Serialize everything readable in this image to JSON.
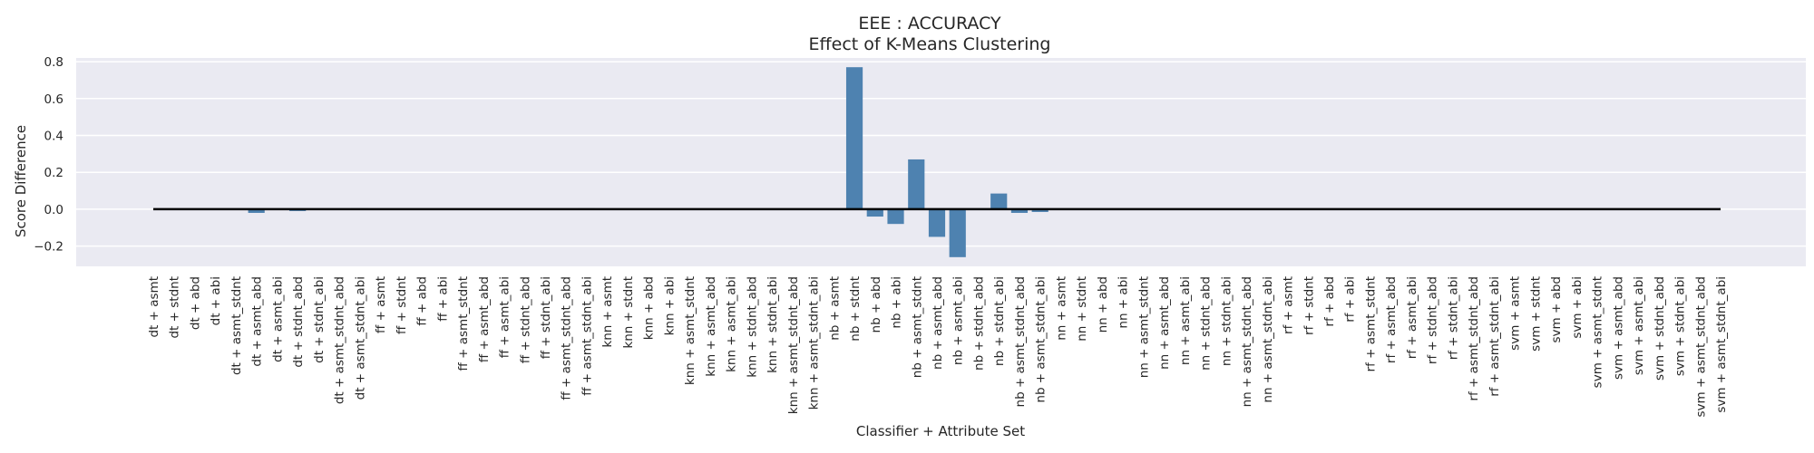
{
  "chart_data": {
    "type": "bar",
    "title": "EEE : ACCURACY",
    "subtitle": "Effect of K-Means Clustering",
    "xlabel": "Classifier + Attribute Set",
    "ylabel": "Score Difference",
    "ylim": [
      -0.31,
      0.82
    ],
    "yticks": [
      -0.2,
      0.0,
      0.2,
      0.4,
      0.6,
      0.8
    ],
    "ytick_labels": [
      "−0.2",
      "0.0",
      "0.2",
      "0.4",
      "0.6",
      "0.8"
    ],
    "grid": true,
    "bar_color": "#4e82b0",
    "background_color": "#eaeaf2",
    "zero_line_color": "#000000",
    "categories": [
      "dt + asmt",
      "dt + stdnt",
      "dt + abd",
      "dt + abi",
      "dt + asmt_stdnt",
      "dt + asmt_abd",
      "dt + asmt_abi",
      "dt + stdnt_abd",
      "dt + stdnt_abi",
      "dt + asmt_stdnt_abd",
      "dt + asmt_stdnt_abi",
      "ff + asmt",
      "ff + stdnt",
      "ff + abd",
      "ff + abi",
      "ff + asmt_stdnt",
      "ff + asmt_abd",
      "ff + asmt_abi",
      "ff + stdnt_abd",
      "ff + stdnt_abi",
      "ff + asmt_stdnt_abd",
      "ff + asmt_stdnt_abi",
      "knn + asmt",
      "knn + stdnt",
      "knn + abd",
      "knn + abi",
      "knn + asmt_stdnt",
      "knn + asmt_abd",
      "knn + asmt_abi",
      "knn + stdnt_abd",
      "knn + stdnt_abi",
      "knn + asmt_stdnt_abd",
      "knn + asmt_stdnt_abi",
      "nb + asmt",
      "nb + stdnt",
      "nb + abd",
      "nb + abi",
      "nb + asmt_stdnt",
      "nb + asmt_abd",
      "nb + asmt_abi",
      "nb + stdnt_abd",
      "nb + stdnt_abi",
      "nb + asmt_stdnt_abd",
      "nb + asmt_stdnt_abi",
      "nn + asmt",
      "nn + stdnt",
      "nn + abd",
      "nn + abi",
      "nn + asmt_stdnt",
      "nn + asmt_abd",
      "nn + asmt_abi",
      "nn + stdnt_abd",
      "nn + stdnt_abi",
      "nn + asmt_stdnt_abd",
      "nn + asmt_stdnt_abi",
      "rf + asmt",
      "rf + stdnt",
      "rf + abd",
      "rf + abi",
      "rf + asmt_stdnt",
      "rf + asmt_abd",
      "rf + asmt_abi",
      "rf + stdnt_abd",
      "rf + stdnt_abi",
      "rf + asmt_stdnt_abd",
      "rf + asmt_stdnt_abi",
      "svm + asmt",
      "svm + stdnt",
      "svm + abd",
      "svm + abi",
      "svm + asmt_stdnt",
      "svm + asmt_abd",
      "svm + asmt_abi",
      "svm + stdnt_abd",
      "svm + stdnt_abi",
      "svm + asmt_stdnt_abd",
      "svm + asmt_stdnt_abi"
    ],
    "values": [
      0.0,
      0.0,
      0.0,
      0.0,
      0.0,
      -0.02,
      0.0,
      -0.01,
      0.0,
      0.0,
      0.005,
      0.0,
      0.0,
      0.0,
      0.0,
      0.0,
      0.0,
      0.0,
      0.0,
      0.0,
      0.0,
      0.005,
      0.0,
      0.0,
      0.0,
      0.0,
      0.0,
      0.0,
      0.0,
      0.0,
      0.0,
      0.0,
      0.0,
      0.0,
      0.77,
      -0.04,
      -0.08,
      0.27,
      -0.15,
      -0.26,
      0.0,
      0.085,
      -0.02,
      -0.015,
      0.0,
      0.0,
      0.0,
      0.0,
      0.0,
      0.0,
      0.0,
      0.0,
      0.0,
      0.0,
      0.0,
      0.0,
      0.0,
      0.0,
      0.0,
      0.0,
      0.0,
      0.0,
      0.0,
      0.0,
      0.0,
      0.0,
      0.0,
      0.0,
      0.0,
      0.0,
      0.0,
      0.0,
      0.0,
      0.0,
      0.0,
      0.0,
      0.0
    ]
  }
}
